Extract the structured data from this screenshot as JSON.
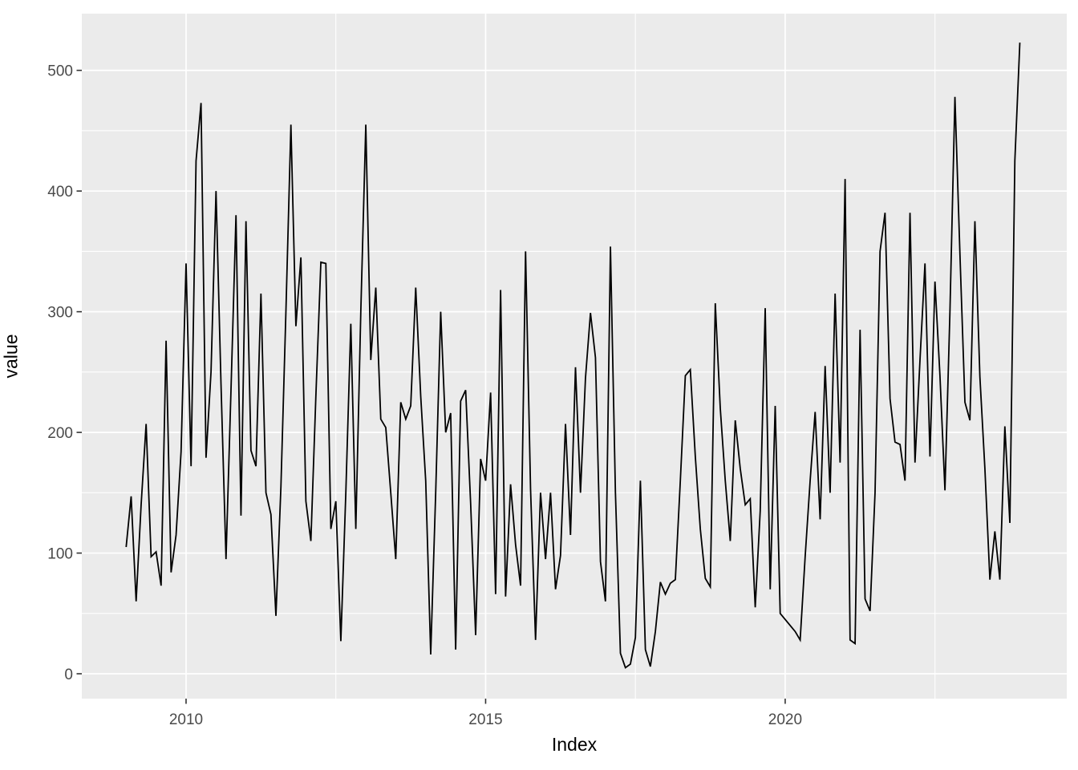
{
  "figure": {
    "background_color": "#FFFFFF"
  },
  "chart_data": {
    "type": "line",
    "title": "",
    "xlabel": "Index",
    "ylabel": "value",
    "legend": false,
    "grid": true,
    "panel_bg": "#EBEBEB",
    "grid_color": "#FFFFFF",
    "line_color": "#000000",
    "tick_label_color": "#4A4A4A",
    "tick_mark_color": "#333333",
    "x_ticks": [
      2010,
      2015,
      2020
    ],
    "x_minor": [
      2012.5,
      2017.5,
      2022.5
    ],
    "y_ticks": [
      0,
      100,
      200,
      300,
      400,
      500
    ],
    "y_minor": [
      50,
      150,
      250,
      350,
      450
    ],
    "x_range": [
      2008.26,
      2024.7
    ],
    "y_range": [
      -20.6,
      547
    ],
    "series": [
      {
        "name": "value",
        "start": "2009-01",
        "frequency": "monthly",
        "values": [
          105,
          147,
          60,
          140,
          207,
          97,
          101,
          73,
          276,
          84,
          115,
          184,
          340,
          172,
          425,
          473,
          179,
          250,
          400,
          240,
          95,
          235,
          380,
          131,
          375,
          185,
          172,
          315,
          150,
          132,
          48,
          155,
          300,
          455,
          288,
          345,
          143,
          110,
          230,
          341,
          340,
          120,
          143,
          27,
          150,
          290,
          120,
          300,
          455,
          260,
          320,
          211,
          204,
          150,
          95,
          225,
          211,
          222,
          320,
          230,
          160,
          16,
          150,
          300,
          200,
          216,
          20,
          226,
          235,
          141,
          32,
          178,
          160,
          233,
          66,
          318,
          64,
          157,
          107,
          73,
          350,
          153,
          28,
          150,
          95,
          150,
          70,
          98,
          207,
          115,
          254,
          150,
          245,
          299,
          262,
          93,
          60,
          354,
          150,
          17,
          5,
          8,
          30,
          160,
          20,
          6,
          35,
          76,
          66,
          75,
          78,
          160,
          247,
          252,
          180,
          120,
          79,
          72,
          307,
          220,
          160,
          110,
          210,
          170,
          140,
          145,
          55,
          135,
          303,
          70,
          222,
          50,
          45,
          40,
          35,
          28,
          97,
          160,
          217,
          128,
          255,
          150,
          315,
          175,
          410,
          28,
          25,
          285,
          62,
          52,
          150,
          350,
          382,
          228,
          192,
          190,
          160,
          382,
          175,
          260,
          340,
          180,
          325,
          247,
          152,
          300,
          478,
          348,
          225,
          210,
          375,
          246,
          170,
          78,
          118,
          78,
          205,
          125,
          425,
          523
        ]
      }
    ]
  }
}
